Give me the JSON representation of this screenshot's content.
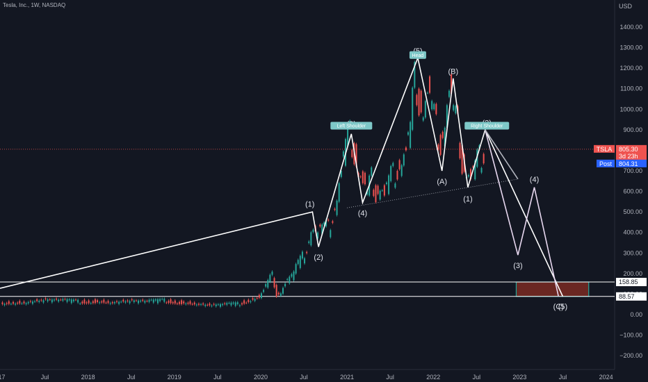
{
  "header": {
    "title": "Tesla, Inc., 1W, NASDAQ",
    "currency": "USD"
  },
  "chart_data": {
    "type": "candlestick",
    "ylim": [
      -250,
      1550
    ],
    "y_ticks": [
      -200,
      -100,
      0,
      100,
      200,
      300,
      400,
      500,
      600,
      700,
      800,
      900,
      1000,
      1100,
      1200,
      1300,
      1400
    ],
    "y_tick_labels": [
      "−200.00",
      "−100.00",
      "0.00",
      "100.00",
      "200.00",
      "300.00",
      "400.00",
      "500.00",
      "600.00",
      "700.00",
      "800.00",
      "900.00",
      "1000.00",
      "1100.00",
      "1200.00",
      "1300.00",
      "1400.00"
    ],
    "x_ticks": [
      "17",
      "Jul",
      "2018",
      "Jul",
      "2019",
      "Jul",
      "2020",
      "Jul",
      "2021",
      "Jul",
      "2022",
      "Jul",
      "2023",
      "Jul",
      "2024"
    ],
    "x_tick_times": [
      2017.0,
      2017.5,
      2018.0,
      2018.5,
      2019.0,
      2019.5,
      2020.0,
      2020.5,
      2021.0,
      2021.5,
      2022.0,
      2022.5,
      2023.0,
      2023.5,
      2024.0
    ],
    "xlim": [
      2016.98,
      2024.1
    ],
    "price": [
      [
        2017.0,
        55
      ],
      [
        2017.3,
        60
      ],
      [
        2017.5,
        70
      ],
      [
        2017.7,
        68
      ],
      [
        2017.9,
        63
      ],
      [
        2018.1,
        66
      ],
      [
        2018.3,
        60
      ],
      [
        2018.5,
        66
      ],
      [
        2018.7,
        62
      ],
      [
        2018.9,
        68
      ],
      [
        2019.1,
        60
      ],
      [
        2019.3,
        52
      ],
      [
        2019.45,
        44
      ],
      [
        2019.6,
        48
      ],
      [
        2019.75,
        52
      ],
      [
        2019.9,
        75
      ],
      [
        2020.0,
        88
      ],
      [
        2020.05,
        120
      ],
      [
        2020.1,
        160
      ],
      [
        2020.15,
        190
      ],
      [
        2020.2,
        100
      ],
      [
        2020.25,
        110
      ],
      [
        2020.3,
        150
      ],
      [
        2020.4,
        200
      ],
      [
        2020.5,
        280
      ],
      [
        2020.55,
        330
      ],
      [
        2020.6,
        420
      ],
      [
        2020.68,
        400
      ],
      [
        2020.75,
        430
      ],
      [
        2020.8,
        420
      ],
      [
        2020.85,
        490
      ],
      [
        2020.9,
        580
      ],
      [
        2020.95,
        700
      ],
      [
        2021.0,
        820
      ],
      [
        2021.05,
        870
      ],
      [
        2021.1,
        800
      ],
      [
        2021.15,
        700
      ],
      [
        2021.2,
        640
      ],
      [
        2021.25,
        580
      ],
      [
        2021.3,
        660
      ],
      [
        2021.35,
        600
      ],
      [
        2021.4,
        630
      ],
      [
        2021.45,
        580
      ],
      [
        2021.5,
        650
      ],
      [
        2021.55,
        680
      ],
      [
        2021.6,
        720
      ],
      [
        2021.65,
        760
      ],
      [
        2021.7,
        800
      ],
      [
        2021.75,
        900
      ],
      [
        2021.8,
        1150
      ],
      [
        2021.85,
        1050
      ],
      [
        2021.9,
        1000
      ],
      [
        2021.95,
        1080
      ],
      [
        2022.0,
        1000
      ],
      [
        2022.05,
        900
      ],
      [
        2022.1,
        850
      ],
      [
        2022.15,
        950
      ],
      [
        2022.2,
        1090
      ],
      [
        2022.25,
        980
      ],
      [
        2022.3,
        900
      ],
      [
        2022.35,
        750
      ],
      [
        2022.4,
        700
      ],
      [
        2022.45,
        660
      ],
      [
        2022.5,
        720
      ],
      [
        2022.55,
        760
      ],
      [
        2022.6,
        805
      ]
    ],
    "current_price": 805.3,
    "post_price": 804.31,
    "ticker": "TSLA",
    "countdown": "3d 23h",
    "post_label": "Post",
    "levels": [
      158.85,
      88.57
    ],
    "level_labels": [
      "158.85",
      "88.57"
    ],
    "target_box": {
      "x_start": 2022.96,
      "x_end": 2023.8,
      "y_low": 88.57,
      "y_high": 158.85
    },
    "wave_lines": [
      {
        "color": "#ffffff",
        "points": [
          [
            2016.98,
            128
          ],
          [
            2020.6,
            500
          ],
          [
            2020.67,
            330
          ],
          [
            2021.05,
            880
          ],
          [
            2021.18,
            545
          ],
          [
            2021.82,
            1250
          ],
          [
            2022.1,
            700
          ],
          [
            2022.23,
            1150
          ],
          [
            2022.4,
            620
          ],
          [
            2022.6,
            900
          ],
          [
            2023.5,
            88
          ]
        ]
      },
      {
        "color": "#e8d8f0",
        "points": [
          [
            2022.6,
            900
          ],
          [
            2022.98,
            290
          ],
          [
            2023.17,
            620
          ],
          [
            2023.45,
            88
          ]
        ]
      },
      {
        "color": "#b2b5be",
        "points": [
          [
            2022.6,
            900
          ],
          [
            2022.98,
            660
          ]
        ]
      }
    ],
    "wave_labels": [
      {
        "text": "(1)",
        "x": 2020.57,
        "y": 540
      },
      {
        "text": "(2)",
        "x": 2020.67,
        "y": 280
      },
      {
        "text": "(3)",
        "x": 2021.05,
        "y": 930
      },
      {
        "text": "(4)",
        "x": 2021.18,
        "y": 495
      },
      {
        "text": "(5)",
        "x": 2021.82,
        "y": 1285
      },
      {
        "text": "(A)",
        "x": 2022.1,
        "y": 650
      },
      {
        "text": "(B)",
        "x": 2022.23,
        "y": 1185
      },
      {
        "text": "(1)",
        "x": 2022.4,
        "y": 565
      },
      {
        "text": "(2)",
        "x": 2022.62,
        "y": 935
      },
      {
        "text": "(3)",
        "x": 2022.98,
        "y": 240
      },
      {
        "text": "(4)",
        "x": 2023.17,
        "y": 660
      },
      {
        "text": "(C)",
        "x": 2023.45,
        "y": 40
      },
      {
        "text": "(5)",
        "x": 2023.5,
        "y": 40
      }
    ],
    "shoulder_tags": [
      {
        "text": "Left Shoulder",
        "x": 2021.05,
        "y": 918
      },
      {
        "text": "Head",
        "x": 2021.82,
        "y": 1262
      },
      {
        "text": "Right Shoulder",
        "x": 2022.62,
        "y": 918
      }
    ],
    "neckline": [
      [
        2021.0,
        520
      ],
      [
        2022.98,
        660
      ]
    ]
  }
}
